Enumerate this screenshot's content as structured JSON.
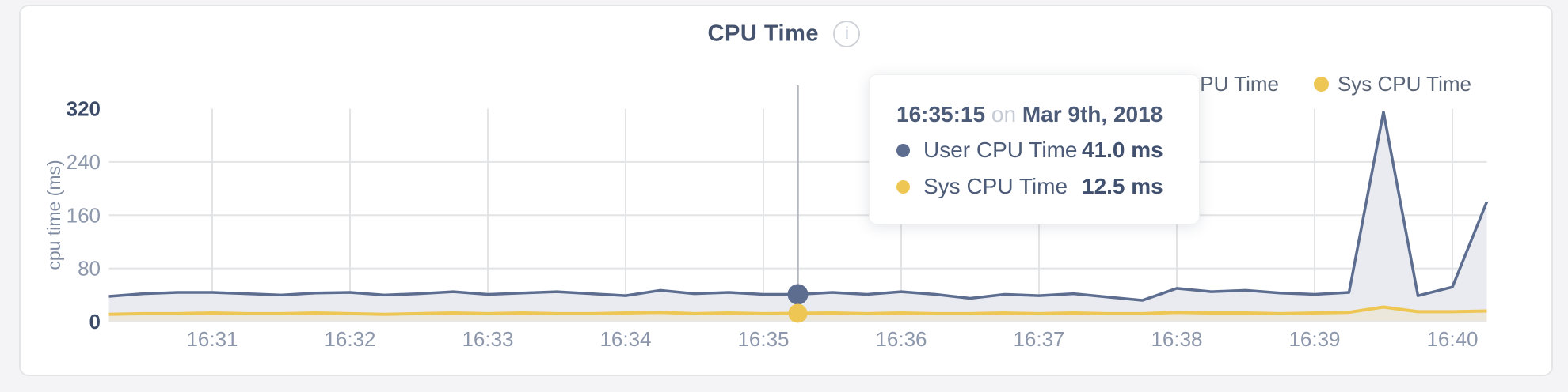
{
  "header": {
    "title": "CPU Time",
    "info_icon_glyph": "i"
  },
  "legend": {
    "items": [
      {
        "label": "User CPU Time",
        "color": "#5c6d90"
      },
      {
        "label": "Sys CPU Time",
        "color": "#eec654"
      }
    ]
  },
  "tooltip": {
    "time": "16:35:15",
    "connector": "on",
    "date": "Mar 9th, 2018",
    "rows": [
      {
        "label": "User CPU Time",
        "value": "41.0 ms",
        "color": "#5c6d90"
      },
      {
        "label": "Sys CPU Time",
        "value": "12.5 ms",
        "color": "#eec654"
      }
    ]
  },
  "chart_data": {
    "type": "line",
    "title": "CPU Time",
    "ylabel": "cpu time (ms)",
    "ylim": [
      0,
      320
    ],
    "y_ticks": [
      0,
      80,
      160,
      240,
      320
    ],
    "x_ticks": [
      "16:31",
      "16:32",
      "16:33",
      "16:34",
      "16:35",
      "16:36",
      "16:37",
      "16:38",
      "16:39",
      "16:40"
    ],
    "x_interval_seconds": 15,
    "grid": true,
    "legend_position": "top-right",
    "x": [
      "16:30:15",
      "16:30:30",
      "16:30:45",
      "16:31:00",
      "16:31:15",
      "16:31:30",
      "16:31:45",
      "16:32:00",
      "16:32:15",
      "16:32:30",
      "16:32:45",
      "16:33:00",
      "16:33:15",
      "16:33:30",
      "16:33:45",
      "16:34:00",
      "16:34:15",
      "16:34:30",
      "16:34:45",
      "16:35:00",
      "16:35:15",
      "16:35:30",
      "16:35:45",
      "16:36:00",
      "16:36:15",
      "16:36:30",
      "16:36:45",
      "16:37:00",
      "16:37:15",
      "16:37:30",
      "16:37:45",
      "16:38:00",
      "16:38:15",
      "16:38:30",
      "16:38:45",
      "16:39:00",
      "16:39:15",
      "16:39:30",
      "16:39:45",
      "16:40:00",
      "16:40:15"
    ],
    "series": [
      {
        "name": "User CPU Time",
        "color": "#5c6d90",
        "fill": "#e9ebf1",
        "values": [
          38,
          42,
          44,
          44,
          42,
          40,
          43,
          44,
          40,
          42,
          45,
          41,
          43,
          45,
          42,
          39,
          47,
          42,
          44,
          41,
          41,
          44,
          41,
          45,
          41,
          35,
          41,
          39,
          42,
          37,
          32,
          50,
          45,
          47,
          43,
          41,
          44,
          315,
          39,
          52,
          180
        ]
      },
      {
        "name": "Sys CPU Time",
        "color": "#eec654",
        "fill": "#ebe7da",
        "values": [
          11,
          12,
          12,
          13,
          12,
          12,
          13,
          12,
          11,
          12,
          13,
          12,
          13,
          12,
          12,
          13,
          14,
          12,
          13,
          12,
          12.5,
          13,
          12,
          13,
          12,
          12,
          13,
          12,
          13,
          12,
          12,
          14,
          13,
          13,
          12,
          13,
          14,
          22,
          15,
          15,
          16
        ]
      }
    ],
    "selected": {
      "index": 20,
      "time": "16:35:15",
      "user_ms": 41.0,
      "sys_ms": 12.5
    }
  },
  "colors": {
    "grid": "#e3e4e6",
    "crosshair": "#b4b7bd",
    "tick_text": "#8d97ab",
    "tick_text_emphasis": "#3c4b68",
    "axis_title_text": "#7f8ba1"
  }
}
